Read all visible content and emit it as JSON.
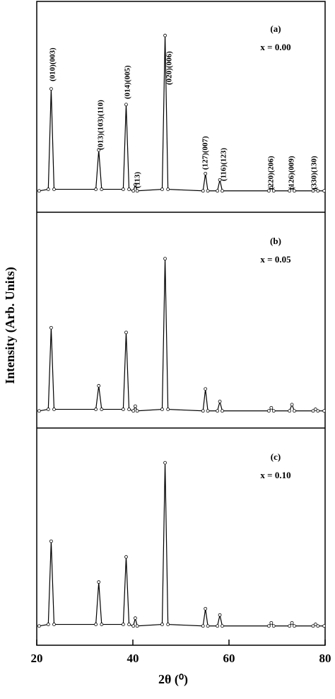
{
  "chart_data": {
    "type": "line",
    "xlabel": "2θ (⁰)",
    "ylabel": "Intensity (Arb. Units)",
    "xlim": [
      20,
      80
    ],
    "xticks": [
      20,
      40,
      60,
      80
    ],
    "ylim": [
      0,
      110
    ],
    "x": [
      20.5,
      22.4,
      23,
      23.6,
      32.3,
      32.9,
      33.5,
      38,
      38.6,
      39.2,
      40.1,
      40.5,
      40.9,
      46.1,
      46.7,
      47.3,
      54.6,
      55.1,
      55.6,
      57.6,
      58.1,
      58.6,
      68.3,
      68.8,
      69.3,
      72.6,
      73.1,
      73.6,
      77.5,
      78,
      78.5,
      79.8
    ],
    "panels": [
      {
        "label": "(a)",
        "composition": "x = 0.00",
        "values": [
          1,
          2,
          66,
          2,
          2,
          27,
          2,
          2,
          56,
          2,
          1,
          5,
          1,
          2,
          100,
          2,
          1,
          12,
          1,
          1,
          8,
          1,
          1,
          3,
          1,
          1,
          3,
          1,
          1,
          2,
          1,
          1
        ],
        "annotations": [
          "(010)(003)",
          "(013)(103)(110)",
          "(014)(005)",
          "(113)",
          "(020)(006)",
          "(127)(007)",
          "(116)(123)",
          "(220)(206)",
          "(126)(009)",
          "(330)(130)"
        ]
      },
      {
        "label": "(b)",
        "composition": "x = 0.05",
        "values": [
          1,
          2,
          54,
          2,
          2,
          17,
          2,
          2,
          51,
          2,
          1,
          4,
          1,
          2,
          98,
          2,
          1,
          15,
          1,
          1,
          7,
          1,
          1,
          3,
          1,
          1,
          5,
          1,
          1,
          2,
          1,
          1
        ]
      },
      {
        "label": "(c)",
        "composition": "x = 0.10",
        "values": [
          1,
          2,
          55,
          2,
          2,
          29,
          2,
          2,
          45,
          2,
          1,
          6,
          1,
          2,
          105,
          2,
          1,
          12,
          1,
          1,
          8,
          1,
          1,
          3,
          1,
          1,
          3,
          1,
          1,
          2,
          1,
          1
        ]
      }
    ]
  }
}
